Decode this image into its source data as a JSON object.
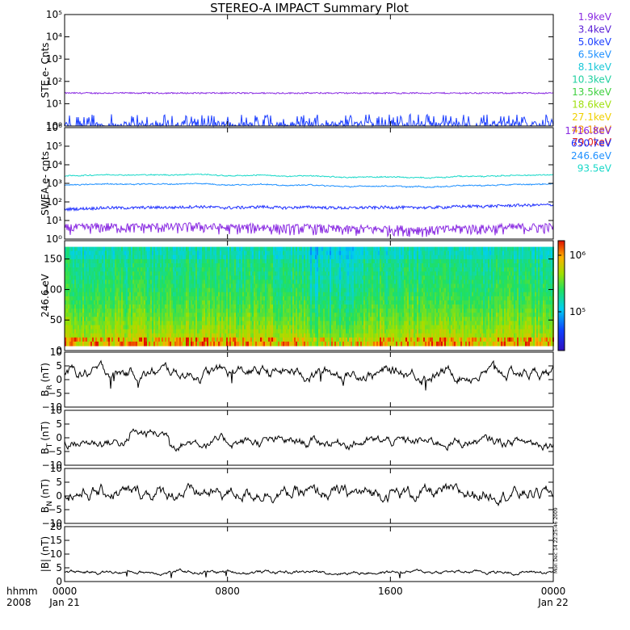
{
  "title": "STEREO-A IMPACT Summary Plot",
  "chart_data": [
    {
      "type": "line",
      "ylabel": "STE e- Cnts",
      "yscale": "log",
      "ylim": [
        1,
        100000
      ],
      "yticks": [
        "10⁰",
        "10¹",
        "10²",
        "10³",
        "10⁴",
        "10⁵"
      ],
      "legend": [
        {
          "name": "1.9keV",
          "color": "#8a2be2"
        },
        {
          "name": "3.4keV",
          "color": "#5a1fd6"
        },
        {
          "name": "5.0keV",
          "color": "#1e40ff"
        },
        {
          "name": "6.5keV",
          "color": "#1e90ff"
        },
        {
          "name": "8.1keV",
          "color": "#18c8d8"
        },
        {
          "name": "10.3keV",
          "color": "#20d0a0"
        },
        {
          "name": "13.5keV",
          "color": "#40d040"
        },
        {
          "name": "18.6keV",
          "color": "#a0e010"
        },
        {
          "name": "27.1keV",
          "color": "#f0d000"
        },
        {
          "name": "43.1keV",
          "color": "#f09000"
        },
        {
          "name": "79.0keV",
          "color": "#e02020"
        }
      ],
      "series": [
        {
          "name": "1.9keV",
          "level": 30
        },
        {
          "name": "5.0keV",
          "level": 1
        }
      ]
    },
    {
      "type": "line",
      "ylabel": "SWEA e- cnts",
      "yscale": "log",
      "ylim": [
        1,
        1000000
      ],
      "yticks": [
        "10⁰",
        "10¹",
        "10²",
        "10³",
        "10⁴",
        "10⁵",
        "10⁶"
      ],
      "legend": [
        {
          "name": "1716.8eV",
          "color": "#8a2be2"
        },
        {
          "name": "650.7eV",
          "color": "#1e2fff"
        },
        {
          "name": "246.6eV",
          "color": "#1e90ff"
        },
        {
          "name": "93.5eV",
          "color": "#18d8c8"
        }
      ],
      "series": [
        {
          "name": "93.5eV",
          "level": 2500
        },
        {
          "name": "246.6eV",
          "level": 800
        },
        {
          "name": "650.7eV",
          "level": 40
        },
        {
          "name": "1716.8eV",
          "level": 4
        }
      ]
    },
    {
      "type": "heatmap",
      "ylabel": "246.6 eV",
      "ylim": [
        0,
        180
      ],
      "yticks": [
        "0",
        "50",
        "100",
        "150"
      ],
      "colorbar_ticks": [
        "10⁶",
        "10⁵"
      ]
    },
    {
      "type": "line",
      "ylabel_main": "B",
      "ylabel_sub": "R",
      "ylabel_unit": "(nT)",
      "ylim": [
        -10,
        10
      ],
      "yticks": [
        "10",
        "5",
        "0",
        "−5",
        "−10"
      ]
    },
    {
      "type": "line",
      "ylabel_main": "B",
      "ylabel_sub": "T",
      "ylabel_unit": "(nT)",
      "ylim": [
        -10,
        10
      ],
      "yticks": [
        "10",
        "5",
        "0",
        "−5",
        "−10"
      ]
    },
    {
      "type": "line",
      "ylabel_main": "B",
      "ylabel_sub": "N",
      "ylabel_unit": "(nT)",
      "ylim": [
        -10,
        10
      ],
      "yticks": [
        "10",
        "5",
        "0",
        "−5",
        "−10"
      ]
    },
    {
      "type": "line",
      "ylabel": "|B| (nT)",
      "ylim": [
        0,
        20
      ],
      "yticks": [
        "20",
        "15",
        "10",
        "5",
        "0"
      ]
    }
  ],
  "xaxis": {
    "corner_top": "hhmm",
    "corner_bottom": "2008",
    "ticks": [
      {
        "hhmm": "0000",
        "date": "Jan 21"
      },
      {
        "hhmm": "0800",
        "date": ""
      },
      {
        "hhmm": "1600",
        "date": ""
      },
      {
        "hhmm": "0000",
        "date": "Jan 22"
      }
    ]
  },
  "stamp": "Mon Dec 14 22:25:46 2009"
}
